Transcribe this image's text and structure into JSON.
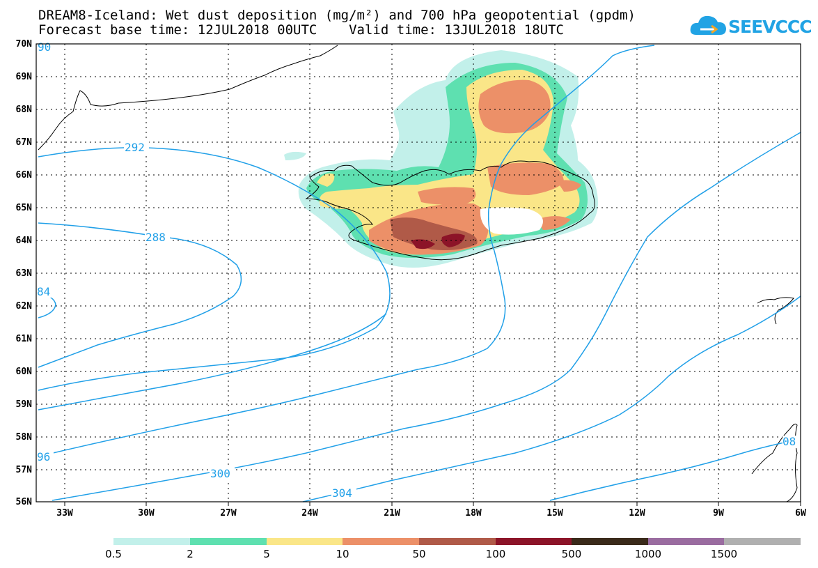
{
  "title": {
    "line1": "DREAM8-Iceland: Wet dust deposition (mg/m²) and 700 hPa geopotential (gpdm)",
    "line2": "Forecast base time: 12JUL2018 00UTC    Valid time: 13JUL2018 18UTC"
  },
  "logo": {
    "text": "SEEVCCC",
    "icon": "cloud-icon",
    "color": "#21a3e4"
  },
  "map": {
    "lat_labels": [
      "70N",
      "69N",
      "68N",
      "67N",
      "66N",
      "65N",
      "64N",
      "63N",
      "62N",
      "61N",
      "60N",
      "59N",
      "58N",
      "57N",
      "56N"
    ],
    "lon_labels": [
      "33W",
      "30W",
      "27W",
      "24W",
      "21W",
      "18W",
      "15W",
      "12W",
      "9W",
      "6W"
    ],
    "contour_color": "#21a0e8",
    "contour_labels": [
      "292",
      "288",
      "84",
      "96",
      "300",
      "304",
      "08",
      "90"
    ]
  },
  "colorbar": {
    "colors": [
      "#c2f0ea",
      "#5ee0b0",
      "#fae688",
      "#ec9068",
      "#b05a48",
      "#8c1428",
      "#3a2a1a",
      "#9a6ca0",
      "#b0b0b0"
    ],
    "labels": [
      "0.5",
      "2",
      "5",
      "10",
      "50",
      "100",
      "500",
      "1000",
      "1500"
    ]
  }
}
